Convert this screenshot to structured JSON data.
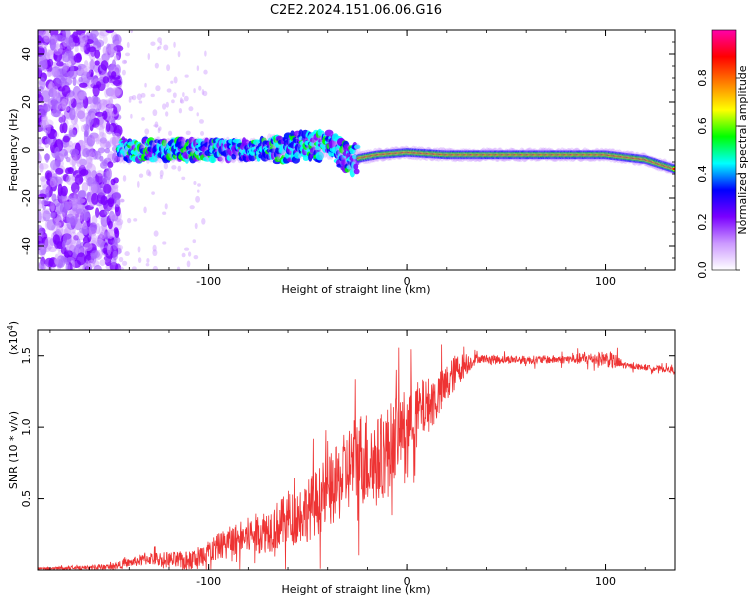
{
  "title": "C2E2.2024.151.06.06.G16",
  "chart_data": [
    {
      "type": "heatmap",
      "title": "C2E2.2024.151.06.06.G16",
      "xlabel": "Height of straight line (km)",
      "ylabel": "Frequency (Hz)",
      "xlim": [
        -186,
        135
      ],
      "ylim": [
        -50,
        50
      ],
      "x_ticks": [
        -100,
        0,
        100
      ],
      "x_tick_labels": [
        "-100",
        "0",
        "100"
      ],
      "y_ticks": [
        -40,
        -20,
        0,
        20,
        40
      ],
      "y_tick_labels": [
        "-40",
        "-20",
        "0",
        "20",
        "40"
      ],
      "colorbar": {
        "label": "Normalized spectral amplitude",
        "range": [
          0.0,
          1.0
        ],
        "ticks": [
          0.0,
          0.2,
          0.4,
          0.6,
          0.8
        ],
        "tick_labels": [
          "0.0",
          "0.2",
          "0.4",
          "0.6",
          "0.8"
        ],
        "colors": [
          "#ffffff",
          "#cc99ff",
          "#7a00ff",
          "#0000ff",
          "#00ffff",
          "#00ff00",
          "#ffff00",
          "#ff8000",
          "#ff0000",
          "#ff00aa"
        ]
      },
      "features": {
        "noise_band_x": [
          -186,
          -145
        ],
        "signal_line": [
          {
            "x": -145,
            "f": 0
          },
          {
            "x": -80,
            "f": 0
          },
          {
            "x": -40,
            "f": 2
          },
          {
            "x": -28,
            "f": -4
          },
          {
            "x": -15,
            "f": -2
          },
          {
            "x": 0,
            "f": -1
          },
          {
            "x": 20,
            "f": -2
          },
          {
            "x": 60,
            "f": -2
          },
          {
            "x": 100,
            "f": -2
          },
          {
            "x": 120,
            "f": -4
          },
          {
            "x": 135,
            "f": -8
          }
        ]
      }
    },
    {
      "type": "line",
      "xlabel": "Height of straight line (km)",
      "ylabel": "SNR (10 * v/v)",
      "y_multiplier": "(x10",
      "y_multiplier_exp": "4",
      "y_multiplier_close": ")",
      "xlim": [
        -186,
        135
      ],
      "ylim": [
        0,
        1.68
      ],
      "x_ticks": [
        -100,
        0,
        100
      ],
      "x_tick_labels": [
        "-100",
        "0",
        "100"
      ],
      "y_ticks": [
        0.5,
        1.0,
        1.5
      ],
      "y_tick_labels": [
        "0.5",
        "1.0",
        "1.5"
      ],
      "color": "#ee3333",
      "envelope": [
        {
          "x": -186,
          "y": 0.01
        },
        {
          "x": -150,
          "y": 0.02
        },
        {
          "x": -130,
          "y": 0.08
        },
        {
          "x": -110,
          "y": 0.06
        },
        {
          "x": -90,
          "y": 0.2
        },
        {
          "x": -70,
          "y": 0.28
        },
        {
          "x": -50,
          "y": 0.42
        },
        {
          "x": -35,
          "y": 0.6
        },
        {
          "x": -25,
          "y": 0.8
        },
        {
          "x": -15,
          "y": 0.75
        },
        {
          "x": -5,
          "y": 0.95
        },
        {
          "x": 5,
          "y": 1.1
        },
        {
          "x": 15,
          "y": 1.2
        },
        {
          "x": 25,
          "y": 1.4
        },
        {
          "x": 35,
          "y": 1.48
        },
        {
          "x": 60,
          "y": 1.47
        },
        {
          "x": 100,
          "y": 1.48
        },
        {
          "x": 110,
          "y": 1.43
        },
        {
          "x": 135,
          "y": 1.4
        }
      ],
      "noise_scale": [
        {
          "x": -186,
          "s": 0.005
        },
        {
          "x": -140,
          "s": 0.03
        },
        {
          "x": -90,
          "s": 0.1
        },
        {
          "x": -40,
          "s": 0.25
        },
        {
          "x": -20,
          "s": 0.35
        },
        {
          "x": 0,
          "s": 0.25
        },
        {
          "x": 25,
          "s": 0.12
        },
        {
          "x": 35,
          "s": 0.03
        },
        {
          "x": 80,
          "s": 0.03
        },
        {
          "x": 105,
          "s": 0.06
        },
        {
          "x": 110,
          "s": 0.02
        },
        {
          "x": 135,
          "s": 0.02
        }
      ]
    }
  ]
}
